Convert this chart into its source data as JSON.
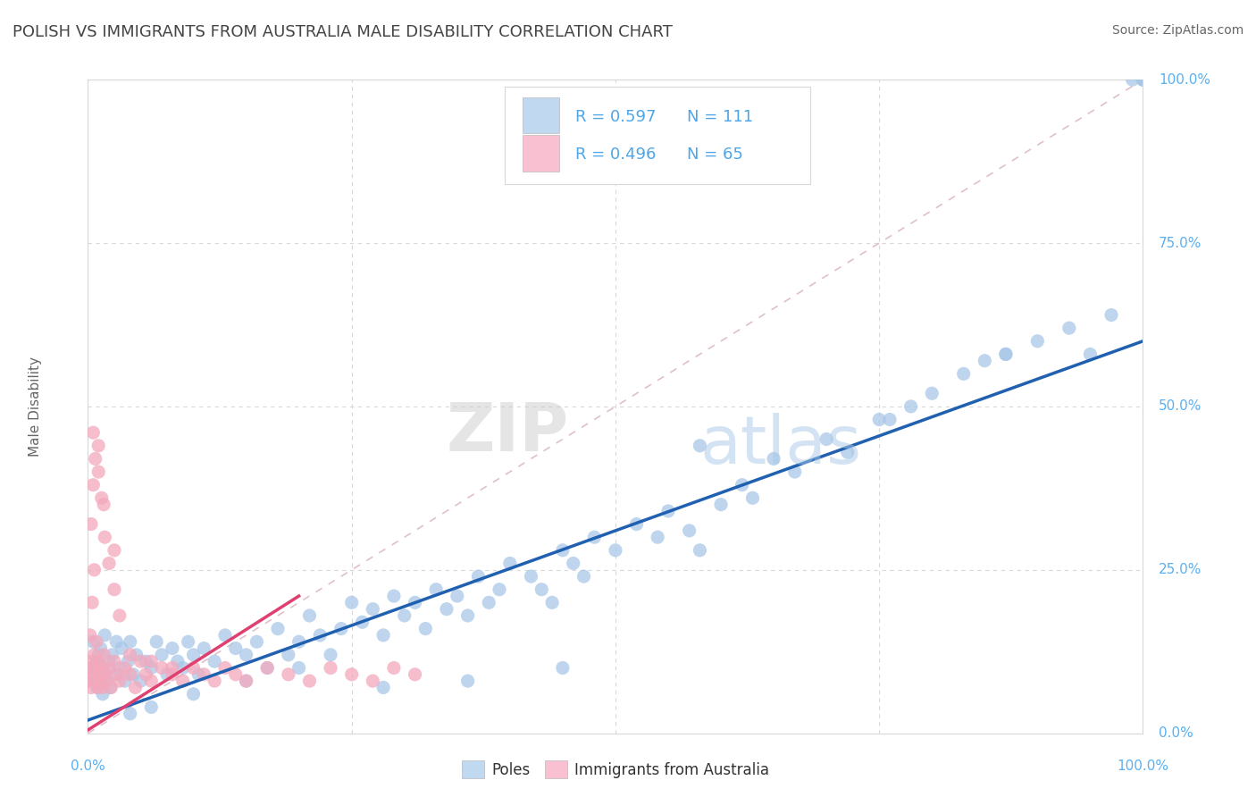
{
  "title": "POLISH VS IMMIGRANTS FROM AUSTRALIA MALE DISABILITY CORRELATION CHART",
  "source": "Source: ZipAtlas.com",
  "ylabel": "Male Disability",
  "watermark_zip": "ZIP",
  "watermark_atlas": "atlas",
  "blue_R": 0.597,
  "blue_N": 111,
  "pink_R": 0.496,
  "pink_N": 65,
  "blue_color": "#a8c8e8",
  "pink_color": "#f4a8bc",
  "blue_line_color": "#2060b0",
  "pink_line_color": "#e04070",
  "blue_legend_color": "#c0d8f0",
  "pink_legend_color": "#f8c0d0",
  "label_color": "#4da6e8",
  "title_color": "#444444",
  "axis_label_color": "#666666",
  "tick_color": "#5bb0f0",
  "grid_color": "#d8d8d8",
  "diag_color": "#e0c0c8",
  "y_ticks": [
    0.0,
    25.0,
    50.0,
    75.0,
    100.0
  ],
  "x_ticks": [
    0.0,
    25.0,
    50.0,
    75.0,
    100.0
  ],
  "blue_scatter_x": [
    0.3,
    0.5,
    0.6,
    0.8,
    0.9,
    1.0,
    1.1,
    1.2,
    1.4,
    1.5,
    1.6,
    1.8,
    2.0,
    2.1,
    2.3,
    2.5,
    2.7,
    3.0,
    3.2,
    3.5,
    3.8,
    4.0,
    4.3,
    4.6,
    5.0,
    5.5,
    6.0,
    6.5,
    7.0,
    7.5,
    8.0,
    8.5,
    9.0,
    9.5,
    10.0,
    10.5,
    11.0,
    12.0,
    13.0,
    14.0,
    15.0,
    16.0,
    17.0,
    18.0,
    19.0,
    20.0,
    21.0,
    22.0,
    23.0,
    24.0,
    25.0,
    26.0,
    27.0,
    28.0,
    29.0,
    30.0,
    31.0,
    32.0,
    33.0,
    34.0,
    35.0,
    36.0,
    37.0,
    38.0,
    39.0,
    40.0,
    42.0,
    43.0,
    44.0,
    45.0,
    46.0,
    47.0,
    48.0,
    50.0,
    52.0,
    54.0,
    55.0,
    57.0,
    58.0,
    60.0,
    62.0,
    63.0,
    65.0,
    67.0,
    70.0,
    72.0,
    75.0,
    78.0,
    80.0,
    83.0,
    85.0,
    87.0,
    90.0,
    93.0,
    95.0,
    97.0,
    99.0,
    100.0,
    100.0,
    100.0,
    58.0,
    76.0,
    87.0,
    4.0,
    6.0,
    10.0,
    15.0,
    20.0,
    28.0,
    36.0,
    45.0
  ],
  "blue_scatter_y": [
    10.0,
    14.0,
    8.0,
    11.0,
    7.0,
    12.0,
    9.0,
    13.0,
    6.0,
    10.0,
    15.0,
    8.0,
    11.0,
    7.0,
    12.0,
    9.0,
    14.0,
    10.0,
    13.0,
    8.0,
    11.0,
    14.0,
    9.0,
    12.0,
    8.0,
    11.0,
    10.0,
    14.0,
    12.0,
    9.0,
    13.0,
    11.0,
    10.0,
    14.0,
    12.0,
    9.0,
    13.0,
    11.0,
    15.0,
    13.0,
    12.0,
    14.0,
    10.0,
    16.0,
    12.0,
    14.0,
    18.0,
    15.0,
    12.0,
    16.0,
    20.0,
    17.0,
    19.0,
    15.0,
    21.0,
    18.0,
    20.0,
    16.0,
    22.0,
    19.0,
    21.0,
    18.0,
    24.0,
    20.0,
    22.0,
    26.0,
    24.0,
    22.0,
    20.0,
    28.0,
    26.0,
    24.0,
    30.0,
    28.0,
    32.0,
    30.0,
    34.0,
    31.0,
    28.0,
    35.0,
    38.0,
    36.0,
    42.0,
    40.0,
    45.0,
    43.0,
    48.0,
    50.0,
    52.0,
    55.0,
    57.0,
    58.0,
    60.0,
    62.0,
    58.0,
    64.0,
    100.0,
    100.0,
    100.0,
    100.0,
    44.0,
    48.0,
    58.0,
    3.0,
    4.0,
    6.0,
    8.0,
    10.0,
    7.0,
    8.0,
    10.0
  ],
  "pink_scatter_x": [
    0.1,
    0.2,
    0.3,
    0.4,
    0.5,
    0.6,
    0.7,
    0.8,
    0.9,
    1.0,
    1.1,
    1.2,
    1.3,
    1.4,
    1.5,
    1.6,
    1.8,
    2.0,
    2.2,
    2.5,
    2.8,
    3.0,
    3.5,
    4.0,
    4.5,
    5.0,
    5.5,
    6.0,
    7.0,
    8.0,
    9.0,
    10.0,
    11.0,
    12.0,
    13.0,
    14.0,
    15.0,
    17.0,
    19.0,
    21.0,
    23.0,
    25.0,
    27.0,
    29.0,
    31.0,
    0.3,
    0.5,
    0.7,
    1.0,
    1.3,
    1.6,
    2.0,
    2.5,
    3.0,
    0.2,
    0.4,
    0.6,
    0.8,
    1.5,
    2.5,
    4.0,
    6.0,
    8.0,
    0.5,
    1.0
  ],
  "pink_scatter_y": [
    8.0,
    10.0,
    7.0,
    11.0,
    9.0,
    12.0,
    8.0,
    10.0,
    7.0,
    11.0,
    9.0,
    8.0,
    10.0,
    7.0,
    12.0,
    9.0,
    8.0,
    10.0,
    7.0,
    11.0,
    9.0,
    8.0,
    10.0,
    9.0,
    7.0,
    11.0,
    9.0,
    8.0,
    10.0,
    9.0,
    8.0,
    10.0,
    9.0,
    8.0,
    10.0,
    9.0,
    8.0,
    10.0,
    9.0,
    8.0,
    10.0,
    9.0,
    8.0,
    10.0,
    9.0,
    32.0,
    38.0,
    42.0,
    44.0,
    36.0,
    30.0,
    26.0,
    22.0,
    18.0,
    15.0,
    20.0,
    25.0,
    14.0,
    35.0,
    28.0,
    12.0,
    11.0,
    10.0,
    46.0,
    40.0
  ]
}
